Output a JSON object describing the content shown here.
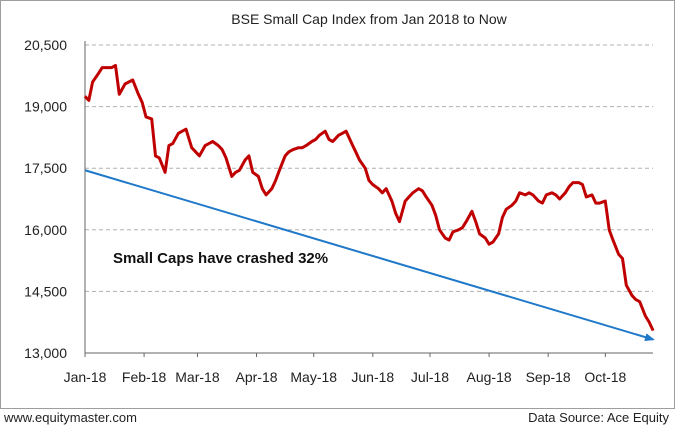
{
  "chart_data": {
    "type": "line",
    "title": "BSE Small Cap Index from Jan 2018 to Now",
    "xlabel": "",
    "ylabel": "",
    "x_ticks": [
      "Jan-18",
      "Feb-18",
      "Mar-18",
      "Apr-18",
      "May-18",
      "Jun-18",
      "Jul-18",
      "Aug-18",
      "Sep-18",
      "Oct-18"
    ],
    "y_ticks": [
      13000,
      14500,
      16000,
      17500,
      19000,
      20500
    ],
    "y_tick_labels": [
      "13,000",
      "14,500",
      "16,000",
      "17,500",
      "19,000",
      "20,500"
    ],
    "ylim": [
      13000,
      20500
    ],
    "grid": "horizontal-dashed",
    "legend": "none",
    "series": [
      {
        "color": "#c00000",
        "x": [
          "2018-01-01",
          "2018-01-03",
          "2018-01-05",
          "2018-01-08",
          "2018-01-10",
          "2018-01-12",
          "2018-01-15",
          "2018-01-17",
          "2018-01-19",
          "2018-01-22",
          "2018-01-24",
          "2018-01-26",
          "2018-01-29",
          "2018-01-31",
          "2018-02-02",
          "2018-02-05",
          "2018-02-07",
          "2018-02-09",
          "2018-02-12",
          "2018-02-14",
          "2018-02-16",
          "2018-02-19",
          "2018-02-21",
          "2018-02-23",
          "2018-02-26",
          "2018-02-28",
          "2018-03-02",
          "2018-03-05",
          "2018-03-07",
          "2018-03-09",
          "2018-03-12",
          "2018-03-14",
          "2018-03-16",
          "2018-03-19",
          "2018-03-21",
          "2018-03-23",
          "2018-03-26",
          "2018-03-28",
          "2018-03-30",
          "2018-04-02",
          "2018-04-04",
          "2018-04-06",
          "2018-04-09",
          "2018-04-11",
          "2018-04-13",
          "2018-04-16",
          "2018-04-18",
          "2018-04-20",
          "2018-04-23",
          "2018-04-25",
          "2018-04-27",
          "2018-04-30",
          "2018-05-02",
          "2018-05-04",
          "2018-05-07",
          "2018-05-09",
          "2018-05-11",
          "2018-05-14",
          "2018-05-16",
          "2018-05-18",
          "2018-05-21",
          "2018-05-23",
          "2018-05-25",
          "2018-05-28",
          "2018-05-30",
          "2018-06-01",
          "2018-06-04",
          "2018-06-06",
          "2018-06-08",
          "2018-06-11",
          "2018-06-13",
          "2018-06-15",
          "2018-06-18",
          "2018-06-20",
          "2018-06-22",
          "2018-06-25",
          "2018-06-27",
          "2018-06-29",
          "2018-07-02",
          "2018-07-04",
          "2018-07-06",
          "2018-07-09",
          "2018-07-11",
          "2018-07-13",
          "2018-07-16",
          "2018-07-18",
          "2018-07-20",
          "2018-07-23",
          "2018-07-25",
          "2018-07-27",
          "2018-07-30",
          "2018-08-01",
          "2018-08-03",
          "2018-08-06",
          "2018-08-08",
          "2018-08-10",
          "2018-08-13",
          "2018-08-15",
          "2018-08-17",
          "2018-08-20",
          "2018-08-22",
          "2018-08-24",
          "2018-08-27",
          "2018-08-29",
          "2018-08-31",
          "2018-09-03",
          "2018-09-05",
          "2018-09-07",
          "2018-09-10",
          "2018-09-12",
          "2018-09-14",
          "2018-09-17",
          "2018-09-19",
          "2018-09-21",
          "2018-09-24",
          "2018-09-26",
          "2018-09-28",
          "2018-10-01",
          "2018-10-03",
          "2018-10-05",
          "2018-10-08",
          "2018-10-10",
          "2018-10-12",
          "2018-10-15",
          "2018-10-17",
          "2018-10-19",
          "2018-10-22",
          "2018-10-24",
          "2018-10-26"
        ],
        "values": [
          19250,
          19150,
          19600,
          19800,
          19950,
          19950,
          19950,
          20000,
          19300,
          19550,
          19600,
          19650,
          19300,
          19100,
          18750,
          18700,
          17800,
          17750,
          17400,
          18050,
          18100,
          18350,
          18400,
          18450,
          18000,
          17900,
          17800,
          18050,
          18100,
          18150,
          18050,
          17950,
          17750,
          17300,
          17400,
          17450,
          17700,
          17800,
          17400,
          17300,
          17000,
          16850,
          17000,
          17200,
          17450,
          17800,
          17900,
          17950,
          18000,
          18000,
          18050,
          18150,
          18200,
          18300,
          18400,
          18200,
          18150,
          18300,
          18350,
          18400,
          18100,
          17900,
          17700,
          17500,
          17200,
          17100,
          17000,
          16900,
          17000,
          16700,
          16400,
          16200,
          16700,
          16800,
          16900,
          17000,
          16950,
          16800,
          16600,
          16350,
          16000,
          15800,
          15750,
          15950,
          16000,
          16050,
          16200,
          16450,
          16200,
          15900,
          15800,
          15650,
          15700,
          15900,
          16300,
          16500,
          16600,
          16700,
          16900,
          16850,
          16900,
          16850,
          16700,
          16650,
          16850,
          16900,
          16850,
          16750,
          16900,
          17050,
          17150,
          17150,
          17100,
          16800,
          16850,
          16650,
          16650,
          16700,
          16000,
          15750,
          15400,
          15300,
          14650,
          14400,
          14300,
          14250,
          13900,
          13750,
          13550
        ]
      }
    ],
    "trendline": {
      "color": "#1f78c8",
      "from": {
        "x": "2018-01-01",
        "y": 17450
      },
      "to": {
        "x": "2018-10-26",
        "y": 13330
      }
    },
    "annotation": "Small Caps have crashed 32%"
  },
  "footer": {
    "site": "www.equitymaster.com",
    "source": "Data Source: Ace Equity"
  }
}
